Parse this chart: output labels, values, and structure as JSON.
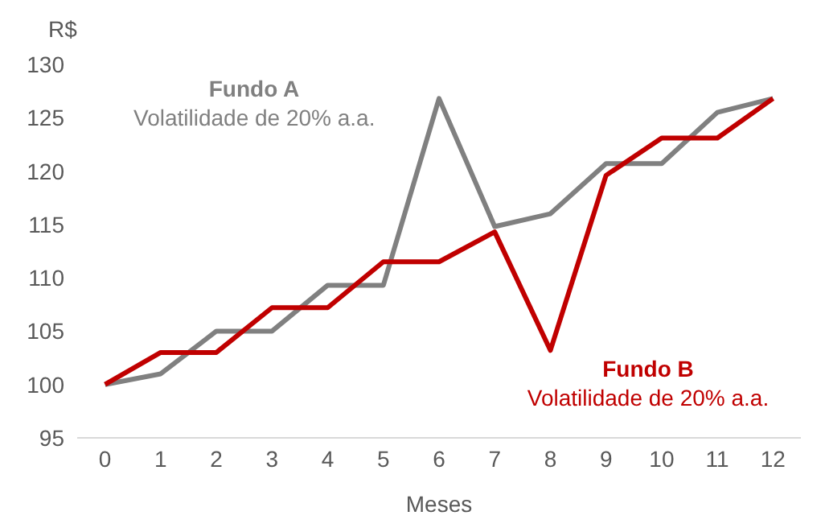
{
  "chart_data": {
    "type": "line",
    "xlabel": "Meses",
    "ylabel": "R$",
    "x": [
      0,
      1,
      2,
      3,
      4,
      5,
      6,
      7,
      8,
      9,
      10,
      11,
      12
    ],
    "xlim": [
      -0.5,
      12.5
    ],
    "xticks": [
      0,
      1,
      2,
      3,
      4,
      5,
      6,
      7,
      8,
      9,
      10,
      11,
      12
    ],
    "ylim": [
      95,
      130
    ],
    "yticks": [
      95,
      100,
      105,
      110,
      115,
      120,
      125,
      130
    ],
    "grid": false,
    "legend": false,
    "marker": "none",
    "line_style": "solid",
    "series": [
      {
        "name": "Fundo A",
        "color": "#808080",
        "values": [
          100,
          101,
          105,
          105,
          109.3,
          109.3,
          126.8,
          114.8,
          116,
          120.7,
          120.7,
          125.5,
          126.8
        ]
      },
      {
        "name": "Fundo B",
        "color": "#c00000",
        "values": [
          100,
          103,
          103,
          107.2,
          107.2,
          111.5,
          111.5,
          114.3,
          103.2,
          119.6,
          123.1,
          123.1,
          126.8
        ]
      }
    ],
    "annotations": [
      "Volatilidade de 20% a.a.",
      "Volatilidade de 20% a.a."
    ]
  }
}
